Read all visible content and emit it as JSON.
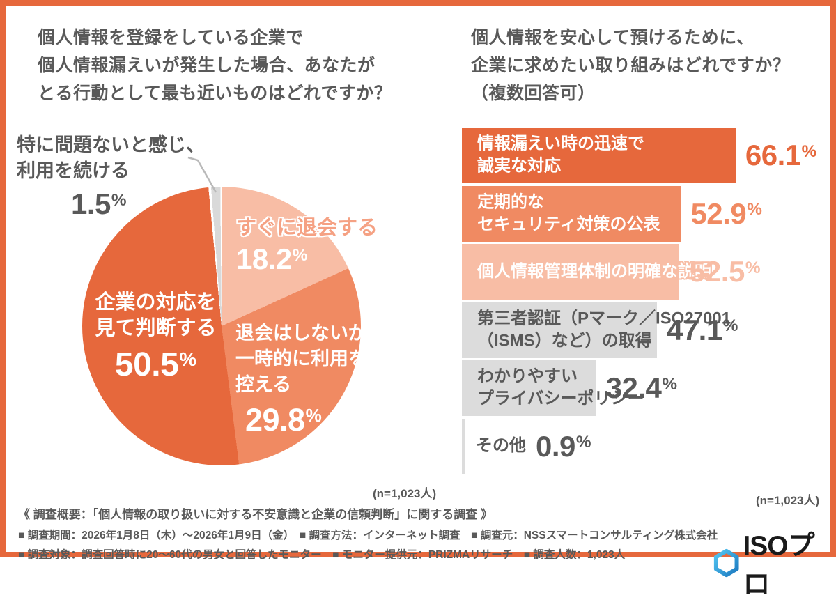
{
  "left_panel": {
    "title": "個人情報を登録をしている企業で\n個人情報漏えいが発生した場合、あなたが\nとる行動として最も近いものはどれですか？",
    "n_label": "(n=1,023人)"
  },
  "right_panel": {
    "title": "個人情報を安心して預けるために、\n企業に求めたい取り組みはどれですか？\n（複数回答可）",
    "n_label": "(n=1,023人)"
  },
  "chart_data": [
    {
      "type": "pie",
      "title": "個人情報を登録をしている企業で個人情報漏えいが発生した場合、あなたがとる行動として最も近いものはどれですか？",
      "n": "(n=1,023人)",
      "start_angle_deg": 0,
      "direction": "clockwise",
      "slices": [
        {
          "label": "すぐに退会する",
          "value": 18.2,
          "display_num": "18.2",
          "display_unit": "%",
          "color": "#F8BDA5",
          "separated": false
        },
        {
          "label": "退会はしないが\n一時的に利用を\n控える",
          "value": 29.8,
          "display_num": "29.8",
          "display_unit": "%",
          "color": "#F08A62",
          "separated": false
        },
        {
          "label": "企業の対応を\n見て判断する",
          "value": 50.5,
          "display_num": "50.5",
          "display_unit": "%",
          "color": "#E6683C",
          "separated": false
        },
        {
          "label": "特に問題ないと感じ、\n利用を続ける",
          "value": 1.5,
          "display_num": "1.5",
          "display_unit": "%",
          "color": "#D9D9D9",
          "separated": true
        }
      ]
    },
    {
      "type": "bar",
      "orientation": "horizontal",
      "title": "個人情報を安心して預けるために、企業に求めたい取り組みはどれですか？（複数回答可）",
      "n": "(n=1,023人)",
      "xmax": 90,
      "bars": [
        {
          "label": "情報漏えい時の迅速で\n誠実な対応",
          "value": 66.1,
          "display_num": "66.1",
          "display_unit": "%",
          "bar_color": "#E6683C",
          "label_color": "#FFFFFF",
          "value_color": "#E6683C"
        },
        {
          "label": "定期的な\nセキュリティ対策の公表",
          "value": 52.9,
          "display_num": "52.9",
          "display_unit": "%",
          "bar_color": "#F08A62",
          "label_color": "#FFFFFF",
          "value_color": "#F08A62"
        },
        {
          "label": "個人情報管理体制の明確な説明",
          "value": 52.5,
          "display_num": "52.5",
          "display_unit": "%",
          "bar_color": "#F8BDA5",
          "label_color": "#FFFFFF",
          "value_color": "#F8BDA5"
        },
        {
          "label": "第三者認証（Pマーク／ISO27001\n（ISMS）など）の取得",
          "value": 47.1,
          "display_num": "47.1",
          "display_unit": "%",
          "bar_color": "#DCDCDC",
          "label_color": "#595959",
          "value_color": "#595959"
        },
        {
          "label": "わかりやすい\nプライバシーポリシー",
          "value": 32.4,
          "display_num": "32.4",
          "display_unit": "%",
          "bar_color": "#DCDCDC",
          "label_color": "#595959",
          "value_color": "#595959"
        },
        {
          "label": "その他",
          "value": 0.9,
          "display_num": "0.9",
          "display_unit": "%",
          "bar_color": "#DCDCDC",
          "label_color": "#595959",
          "value_color": "#595959"
        }
      ]
    }
  ],
  "footer": {
    "overview": "《 調査概要：「個人情報の取り扱いに対する不安意識と企業の信頼判断」に関する調査 》",
    "line1": "■ 調査期間：2026年1月8日（木）～2026年1月9日（金）　■ 調査方法：インターネット調査　■ 調査元：NSSスマートコンサルティング株式会社",
    "line2": "■ 調査対象：調査回答時に20～60代の男女と回答したモニター　■ モニター提供元：PRIZMAリサーチ　■ 調査人数：1,023人",
    "logo_text": "ISOプロ"
  },
  "colors": {
    "frame_border": "#E6683C",
    "dark_orange": "#E6683C",
    "salmon": "#F08A62",
    "light_pink": "#F8BDA5",
    "gray_bar": "#DCDCDC",
    "gray_slice": "#D9D9D9",
    "text_gray": "#595959",
    "logo_blue_light": "#53C6F2",
    "logo_blue_dark": "#1C79C0"
  }
}
